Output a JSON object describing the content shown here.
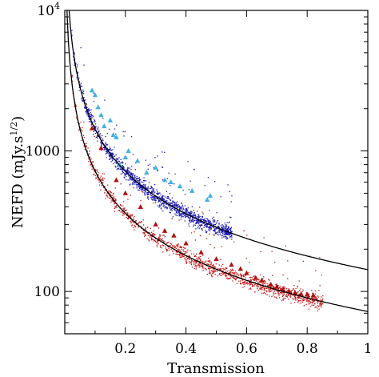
{
  "chart_data": {
    "type": "scatter",
    "xlabel": "Transmission",
    "ylabel": "NEFD  (mJy.s",
    "ylabel_sup": "1/2",
    "ylabel_end": ")",
    "x_axis": {
      "range": [
        0.0,
        1.0
      ],
      "ticks": [
        0.2,
        0.4,
        0.6,
        0.8,
        1.0
      ],
      "tick_labels": [
        "0.2",
        "0.4",
        "0.6",
        "0.8",
        "1"
      ]
    },
    "y_axis": {
      "scale": "log",
      "range": [
        50,
        10000
      ],
      "tick_labels": [
        {
          "value": 100,
          "base": "100",
          "sup": ""
        },
        {
          "value": 1000,
          "base": "1000",
          "sup": ""
        },
        {
          "value": 10000,
          "base": "10",
          "sup": "4"
        }
      ]
    },
    "grid": false,
    "legend": "none",
    "series": [
      {
        "marker": "dots",
        "color": "#1a1ab4",
        "x_range": [
          0.02,
          0.55
        ],
        "y_at_unit_transmission": 143
      },
      {
        "marker": "triangles",
        "color": "#3fb2e0",
        "points": [
          [
            0.09,
            2700
          ],
          [
            0.1,
            2500
          ],
          [
            0.11,
            2050
          ],
          [
            0.12,
            1800
          ],
          [
            0.13,
            1500
          ],
          [
            0.15,
            1650
          ],
          [
            0.16,
            1300
          ],
          [
            0.17,
            1250
          ],
          [
            0.18,
            800
          ],
          [
            0.2,
            900
          ],
          [
            0.21,
            1000
          ],
          [
            0.24,
            850
          ],
          [
            0.27,
            700
          ],
          [
            0.3,
            760
          ],
          [
            0.33,
            620
          ],
          [
            0.35,
            600
          ],
          [
            0.38,
            560
          ],
          [
            0.42,
            520
          ],
          [
            0.47,
            450
          ],
          [
            0.48,
            480
          ]
        ]
      },
      {
        "marker": "dots",
        "color": "#c01818",
        "x_range": [
          0.02,
          0.85
        ],
        "y_at_unit_transmission": 72
      },
      {
        "marker": "triangles",
        "color": "#b01010",
        "points": [
          [
            0.09,
            1450
          ],
          [
            0.12,
            1050
          ],
          [
            0.17,
            620
          ],
          [
            0.2,
            500
          ],
          [
            0.25,
            400
          ],
          [
            0.3,
            300
          ],
          [
            0.33,
            270
          ],
          [
            0.36,
            250
          ],
          [
            0.4,
            220
          ],
          [
            0.45,
            190
          ],
          [
            0.5,
            170
          ],
          [
            0.55,
            155
          ],
          [
            0.58,
            145
          ],
          [
            0.6,
            135
          ],
          [
            0.63,
            125
          ],
          [
            0.65,
            120
          ],
          [
            0.68,
            112
          ],
          [
            0.7,
            108
          ],
          [
            0.72,
            104
          ],
          [
            0.74,
            100
          ],
          [
            0.76,
            98
          ],
          [
            0.78,
            96
          ],
          [
            0.8,
            95
          ],
          [
            0.82,
            94
          ]
        ]
      },
      {
        "marker": "line",
        "color": "#000000",
        "formula": "y = 143 / x"
      },
      {
        "marker": "line",
        "color": "#000000",
        "formula": "y = 72 / x"
      }
    ]
  }
}
